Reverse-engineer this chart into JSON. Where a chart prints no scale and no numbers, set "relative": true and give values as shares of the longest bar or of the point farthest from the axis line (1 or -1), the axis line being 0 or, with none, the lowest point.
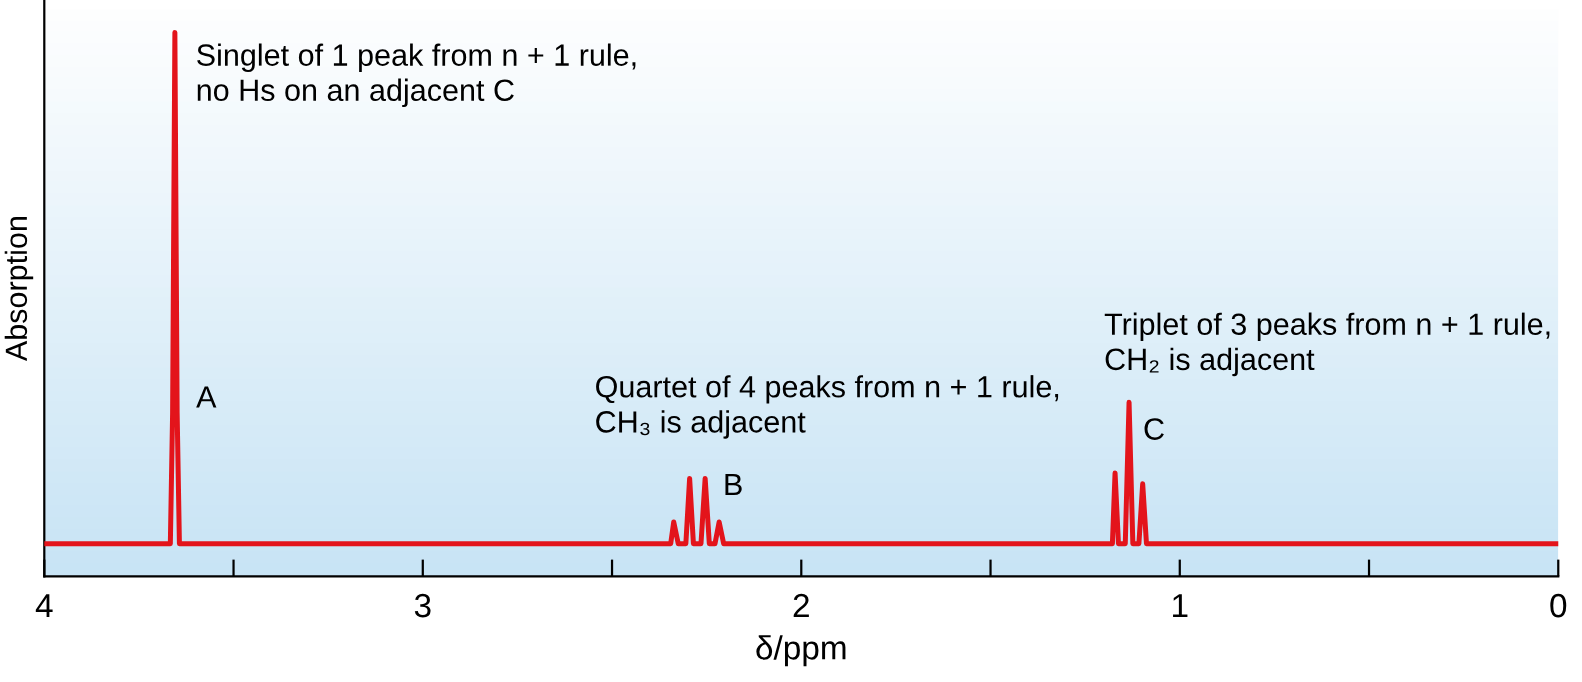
{
  "chart_data": {
    "type": "line",
    "relative": true,
    "xlabel": "δ/ppm",
    "ylabel": "Absorption",
    "xlim": [
      4,
      0
    ],
    "xticks": [
      4,
      {
        "value": 3.5,
        "label": null
      },
      3,
      {
        "value": 2.5,
        "label": null
      },
      2,
      {
        "value": 1.5,
        "label": null
      },
      1,
      {
        "value": 0.5,
        "label": null
      },
      0
    ],
    "series": [
      {
        "color": "#e3141b",
        "x": [
          4.0,
          3.667,
          3.661,
          3.655,
          3.649,
          3.643,
          2.36,
          2.345,
          2.337,
          2.325,
          2.305,
          2.295,
          2.285,
          2.265,
          2.254,
          2.243,
          2.228,
          2.217,
          2.205,
          1.19,
          1.178,
          1.171,
          1.162,
          1.144,
          1.134,
          1.124,
          1.108,
          1.098,
          1.088,
          0.0
        ],
        "values": [
          0.06,
          0.06,
          0.3,
          1.0,
          0.3,
          0.06,
          0.06,
          0.06,
          0.1,
          0.06,
          0.06,
          0.18,
          0.06,
          0.06,
          0.18,
          0.06,
          0.06,
          0.1,
          0.06,
          0.06,
          0.06,
          0.19,
          0.06,
          0.06,
          0.32,
          0.06,
          0.06,
          0.17,
          0.06,
          0.06
        ]
      }
    ],
    "annotations": [
      "Singlet of 1 peak from n + 1 rule,\nno Hs on an adjacent C",
      "A",
      "Quartet of 4 peaks from n + 1 rule,\nCH₃ is adjacent",
      "B",
      "Triplet of 3 peaks from n + 1 rule,\nCH₂ is adjacent",
      "C"
    ]
  }
}
